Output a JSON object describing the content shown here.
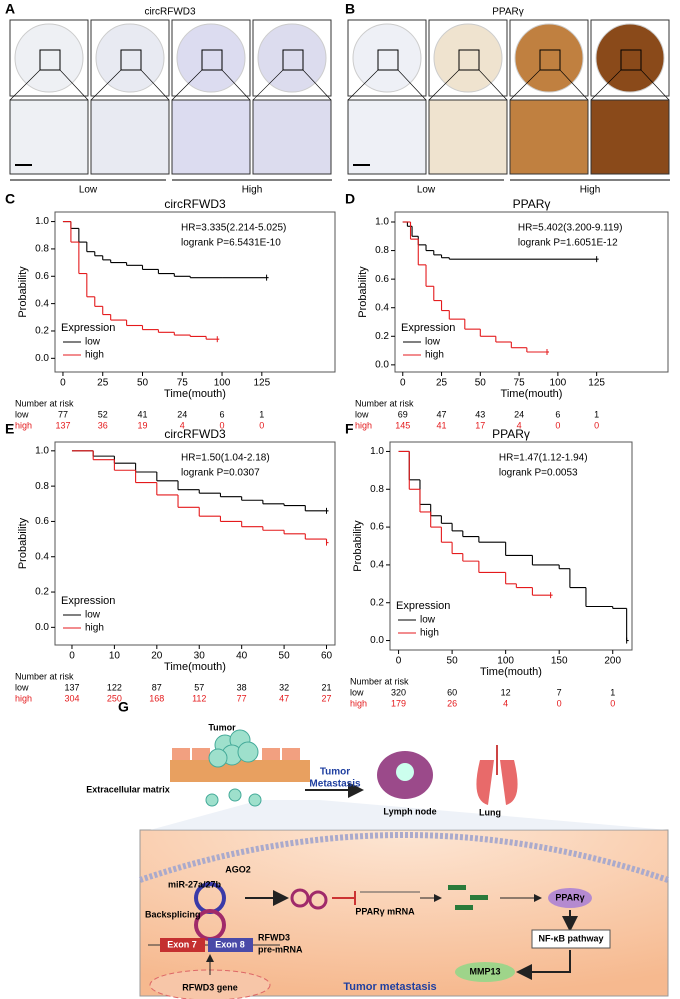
{
  "panel_labels": [
    "A",
    "B",
    "C",
    "D",
    "E",
    "F",
    "G"
  ],
  "histology": [
    {
      "title": "circRFWD3",
      "groups": [
        "Low",
        "High"
      ]
    },
    {
      "title": "PPARγ",
      "groups": [
        "Low",
        "High"
      ]
    }
  ],
  "chart_data": [
    {
      "type": "step",
      "title": "circRFWD3",
      "annotations": [
        "HR=3.335(2.214-5.025)",
        "logrank P=6.5431E-10"
      ],
      "x_label": "Time(mouth)",
      "y_label": "Probability",
      "legend_title": "Expression",
      "xlim": [
        -5,
        171
      ],
      "xticks": [
        0,
        25,
        50,
        75,
        100,
        125
      ],
      "ylim": [
        -0.1,
        1.07
      ],
      "yticks": [
        {
          "value": 0,
          "label": "0.0"
        },
        0.2,
        0.4,
        0.6,
        0.8,
        {
          "value": 1,
          "label": "1.0"
        }
      ],
      "series": [
        {
          "name": "low",
          "color": "#000000",
          "x": [
            0,
            5,
            10,
            15,
            20,
            25,
            30,
            40,
            50,
            60,
            70,
            80,
            100,
            128
          ],
          "values": [
            1,
            0.95,
            0.85,
            0.78,
            0.75,
            0.72,
            0.7,
            0.68,
            0.65,
            0.62,
            0.6,
            0.59,
            0.59,
            0.59
          ]
        },
        {
          "name": "high",
          "color": "#e41a1c",
          "x": [
            0,
            5,
            10,
            15,
            20,
            25,
            30,
            40,
            50,
            60,
            70,
            80,
            90,
            97
          ],
          "values": [
            1,
            0.85,
            0.62,
            0.45,
            0.38,
            0.32,
            0.28,
            0.24,
            0.21,
            0.19,
            0.17,
            0.16,
            0.14,
            0.14
          ]
        }
      ],
      "risk_table": {
        "title": "Number at risk",
        "rows": [
          {
            "name": "low",
            "values": [
              77,
              52,
              41,
              24,
              6,
              1
            ]
          },
          {
            "name": "high",
            "values": [
              137,
              36,
              19,
              4,
              0,
              0
            ]
          }
        ]
      }
    },
    {
      "type": "step",
      "title": "PPARγ",
      "annotations": [
        "HR=5.402(3.200-9.119)",
        "logrank P=1.6051E-12"
      ],
      "x_label": "Time(mouth)",
      "y_label": "Probability",
      "legend_title": "Expression",
      "xlim": [
        -5,
        171
      ],
      "xticks": [
        0,
        25,
        50,
        75,
        100,
        125
      ],
      "ylim": [
        -0.05,
        1.07
      ],
      "yticks": [
        {
          "value": 0,
          "label": "0.0"
        },
        0.2,
        0.4,
        0.6,
        0.8,
        {
          "value": 1,
          "label": "1.0"
        }
      ],
      "series": [
        {
          "name": "low",
          "color": "#000000",
          "x": [
            0,
            3,
            6,
            10,
            15,
            20,
            25,
            30,
            125
          ],
          "values": [
            1,
            0.97,
            0.9,
            0.84,
            0.8,
            0.77,
            0.75,
            0.74,
            0.74
          ]
        },
        {
          "name": "high",
          "color": "#e41a1c",
          "x": [
            0,
            5,
            10,
            15,
            20,
            25,
            30,
            40,
            50,
            60,
            70,
            80,
            93
          ],
          "values": [
            1,
            0.88,
            0.7,
            0.55,
            0.45,
            0.38,
            0.32,
            0.25,
            0.2,
            0.16,
            0.12,
            0.09,
            0.09
          ]
        }
      ],
      "risk_table": {
        "title": "Number at risk",
        "rows": [
          {
            "name": "low",
            "values": [
              69,
              47,
              43,
              24,
              6,
              1
            ]
          },
          {
            "name": "high",
            "values": [
              145,
              41,
              17,
              4,
              0,
              0
            ]
          }
        ]
      }
    },
    {
      "type": "step",
      "title": "circRFWD3",
      "annotations": [
        "HR=1.50(1.04-2.18)",
        "logrank P=0.0307"
      ],
      "x_label": "Time(mouth)",
      "y_label": "Probability",
      "legend_title": "Expression",
      "xlim": [
        -4,
        62
      ],
      "xticks": [
        0,
        10,
        20,
        30,
        40,
        50,
        60
      ],
      "ylim": [
        -0.1,
        1.05
      ],
      "yticks": [
        {
          "value": 0,
          "label": "0.0"
        },
        0.2,
        0.4,
        0.6,
        0.8,
        {
          "value": 1,
          "label": "1.0"
        }
      ],
      "series": [
        {
          "name": "low",
          "color": "#000000",
          "x": [
            0,
            5,
            10,
            15,
            20,
            25,
            30,
            35,
            40,
            45,
            50,
            55,
            60
          ],
          "values": [
            1,
            0.97,
            0.93,
            0.88,
            0.83,
            0.78,
            0.76,
            0.74,
            0.72,
            0.7,
            0.69,
            0.66,
            0.66
          ]
        },
        {
          "name": "high",
          "color": "#e41a1c",
          "x": [
            0,
            5,
            10,
            15,
            20,
            25,
            30,
            35,
            40,
            45,
            50,
            55,
            60
          ],
          "values": [
            1,
            0.95,
            0.89,
            0.82,
            0.75,
            0.68,
            0.63,
            0.6,
            0.57,
            0.55,
            0.53,
            0.5,
            0.48
          ]
        }
      ],
      "risk_table": {
        "title": "Number at risk",
        "rows": [
          {
            "name": "low",
            "values": [
              137,
              122,
              87,
              57,
              38,
              32,
              21
            ]
          },
          {
            "name": "high",
            "values": [
              304,
              250,
              168,
              112,
              77,
              47,
              27
            ]
          }
        ]
      }
    },
    {
      "type": "step",
      "title": "PPARγ",
      "annotations": [
        "HR=1.47(1.12-1.94)",
        "logrank P=0.0053"
      ],
      "x_label": "Time(mouth)",
      "y_label": "Probability",
      "legend_title": "Expression",
      "xlim": [
        -8,
        218
      ],
      "xticks": [
        0,
        50,
        100,
        150,
        200
      ],
      "ylim": [
        -0.05,
        1.05
      ],
      "yticks": [
        {
          "value": 0,
          "label": "0.0"
        },
        0.2,
        0.4,
        0.6,
        0.8,
        {
          "value": 1,
          "label": "1.0"
        }
      ],
      "series": [
        {
          "name": "low",
          "color": "#000000",
          "x": [
            0,
            10,
            20,
            30,
            40,
            50,
            60,
            75,
            100,
            125,
            150,
            160,
            175,
            200,
            213
          ],
          "values": [
            1,
            0.85,
            0.72,
            0.66,
            0.62,
            0.58,
            0.55,
            0.52,
            0.45,
            0.4,
            0.38,
            0.28,
            0.18,
            0.17,
            0
          ]
        },
        {
          "name": "high",
          "color": "#e41a1c",
          "x": [
            0,
            10,
            20,
            30,
            40,
            50,
            60,
            75,
            100,
            110,
            125,
            142
          ],
          "values": [
            1,
            0.8,
            0.68,
            0.6,
            0.52,
            0.46,
            0.42,
            0.36,
            0.3,
            0.28,
            0.24,
            0.24
          ]
        }
      ],
      "risk_table": {
        "title": "Number at risk",
        "rows": [
          {
            "name": "low",
            "values": [
              320,
              60,
              12,
              7,
              1
            ]
          },
          {
            "name": "high",
            "values": [
              179,
              26,
              4,
              0,
              0
            ]
          }
        ]
      }
    }
  ],
  "diagram": {
    "tumor": "Tumor",
    "extracellular_matrix": "Extracellular matrix",
    "metastasis": [
      "Tumor",
      "Metastasis"
    ],
    "lymph_node": "Lymph node",
    "lung": "Lung",
    "ago2": "AGO2",
    "mirna": "miR-27a/27b",
    "backsplicing": "Backsplicing",
    "exon7": "Exon 7",
    "exon8": "Exon 8",
    "pre_mrna": [
      "RFWD3",
      "pre-mRNA"
    ],
    "gene": "RFWD3 gene",
    "mrna": "PPARγ mRNA",
    "protein": "PPARγ",
    "pathway": "NF-κB pathway",
    "mmp13": "MMP13",
    "outcome": "Tumor metastasis"
  }
}
